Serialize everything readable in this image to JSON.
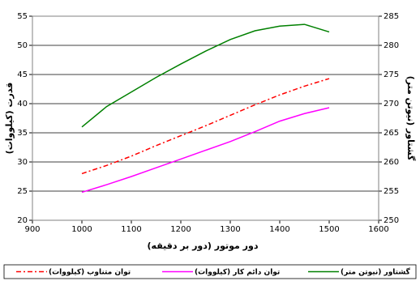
{
  "chart_data": {
    "type": "line",
    "x_label": "دور موتور (دور بر دقیقه)",
    "y_label": "قدرت (کیلووات)",
    "y2_label": "گشتاور (نیوتن متر)",
    "x": [
      1000,
      1050,
      1100,
      1150,
      1200,
      1250,
      1300,
      1350,
      1400,
      1450,
      1500
    ],
    "xlim": [
      900,
      1600
    ],
    "xticks": [
      900,
      1000,
      1100,
      1200,
      1300,
      1400,
      1500,
      1600
    ],
    "ylim": [
      20,
      55
    ],
    "yticks": [
      20,
      25,
      30,
      35,
      40,
      45,
      50,
      55
    ],
    "y2lim": [
      250,
      285
    ],
    "y2ticks": [
      250,
      255,
      260,
      265,
      270,
      275,
      280,
      285
    ],
    "grid": true,
    "legend": "bottom",
    "series": [
      {
        "name": "گشتاور (نیوتن متر)",
        "color": "#008000",
        "axis": "y2",
        "dash": "solid",
        "values": [
          266,
          269.5,
          272,
          274.5,
          276.8,
          279,
          281,
          282.5,
          283.3,
          283.6,
          282.3
        ]
      },
      {
        "name": "توان دائم کار (کیلووات)",
        "color": "#ff00ff",
        "axis": "y",
        "dash": "solid",
        "values": [
          24.8,
          26.1,
          27.5,
          29,
          30.5,
          32,
          33.5,
          35.2,
          37,
          38.3,
          39.3
        ]
      },
      {
        "name": "توان متناوب (کیلووات)",
        "color": "#ff0000",
        "axis": "y",
        "dash": "dashdot",
        "values": [
          28,
          29.4,
          31,
          32.8,
          34.5,
          36.2,
          38,
          39.8,
          41.5,
          43,
          44.3
        ]
      }
    ]
  }
}
